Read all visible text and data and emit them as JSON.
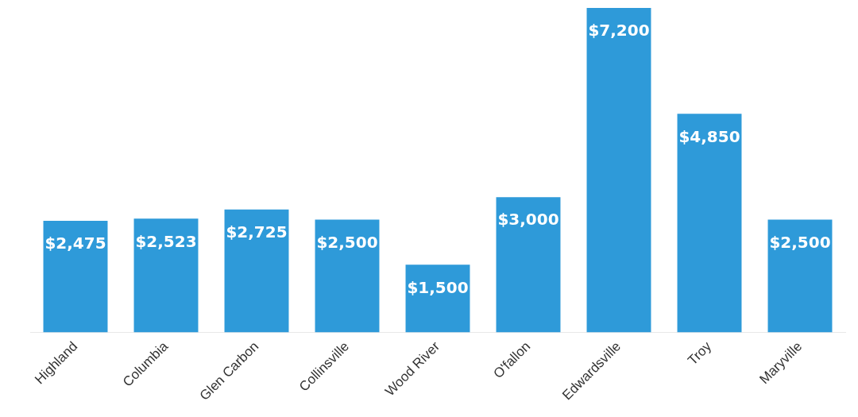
{
  "chart_data": {
    "type": "bar",
    "categories": [
      "Highland",
      "Columbia",
      "Glen Carbon",
      "Collinsville",
      "Wood River",
      "O'fallon",
      "Edwardsville",
      "Troy",
      "Maryville"
    ],
    "values": [
      2475,
      2523,
      2725,
      2500,
      1500,
      3000,
      7200,
      4850,
      2500
    ],
    "value_labels": [
      "$2,475",
      "$2,523",
      "$2,725",
      "$2,500",
      "$1,500",
      "$3,000",
      "$7,200",
      "$4,850",
      "$2,500"
    ],
    "color": "#2e9ad9",
    "grid": false,
    "legend": false
  }
}
